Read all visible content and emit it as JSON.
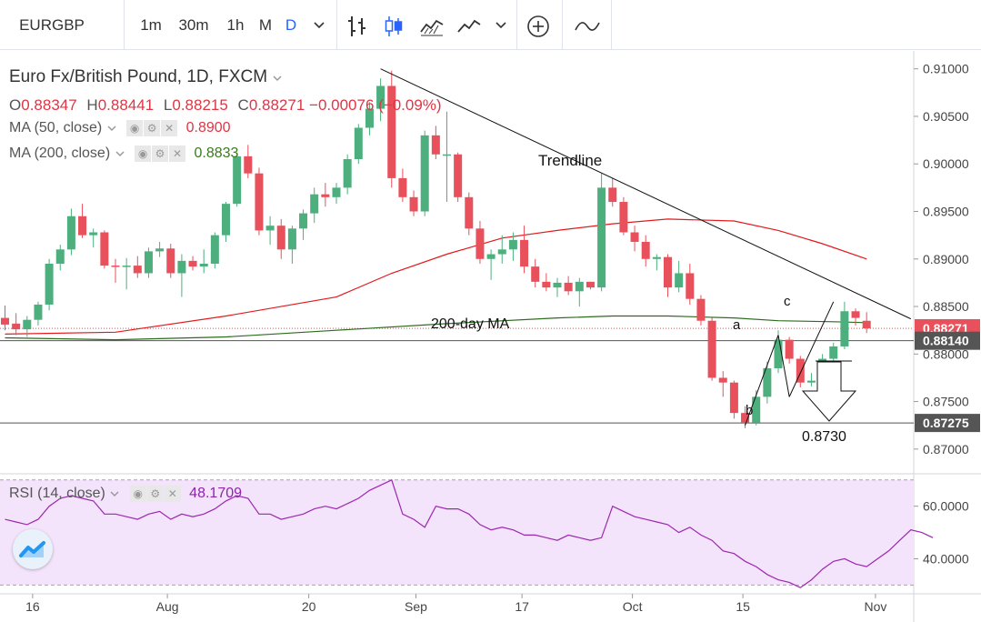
{
  "toolbar": {
    "symbol": "EURGBP",
    "intervals": [
      "1m",
      "30m",
      "1h",
      "M",
      "D"
    ],
    "active_interval": "D"
  },
  "legend": {
    "title": "Euro Fx/British Pound, 1D, FXCM",
    "ohlc": {
      "o_label": "O",
      "o": "0.88347",
      "h_label": "H",
      "h": "0.88441",
      "l_label": "L",
      "l": "0.88215",
      "c_label": "C",
      "c": "0.88271",
      "change": "−0.00076 (−0.09%)"
    },
    "ma50": {
      "label": "MA (50, close)",
      "value": "0.8900"
    },
    "ma200": {
      "label": "MA (200, close)",
      "value": "0.8833"
    },
    "rsi": {
      "label": "RSI (14, close)",
      "value": "48.1709"
    }
  },
  "annotations": {
    "trendline": "Trendline",
    "ma200": "200-day MA",
    "a": "a",
    "b": "b",
    "c": "c",
    "target": "0.8730"
  },
  "colors": {
    "up": "#4caf7d",
    "down": "#e8505b",
    "ma50": "#e31a1c",
    "ma200": "#2e6b1e",
    "rsi": "#9c27b0",
    "rsi_band": "#f3e3fb"
  },
  "chart_data": [
    {
      "type": "candlestick",
      "title": "Euro Fx/British Pound, 1D, FXCM",
      "ylim": [
        0.8675,
        0.9115
      ],
      "price_ticks": [
        "0.91000",
        "0.90500",
        "0.90000",
        "0.89500",
        "0.89000",
        "0.88500",
        "0.88000",
        "0.87500",
        "0.87000"
      ],
      "price_labels": [
        {
          "value": "0.88271",
          "color": "#e8505b"
        },
        {
          "value": "0.88140",
          "color": "#555555"
        },
        {
          "value": "0.87275",
          "color": "#555555"
        }
      ],
      "horizontal_levels": [
        0.8814,
        0.87275
      ],
      "x_labels": [
        "16",
        "Aug",
        "20",
        "Sep",
        "17",
        "Oct",
        "15",
        "Nov"
      ],
      "candles": [
        {
          "o": 0.8838,
          "h": 0.8851,
          "l": 0.8825,
          "c": 0.8831
        },
        {
          "o": 0.8832,
          "h": 0.8843,
          "l": 0.882,
          "c": 0.8826
        },
        {
          "o": 0.8826,
          "h": 0.884,
          "l": 0.8818,
          "c": 0.8836
        },
        {
          "o": 0.8836,
          "h": 0.8855,
          "l": 0.883,
          "c": 0.8852
        },
        {
          "o": 0.8852,
          "h": 0.89,
          "l": 0.8846,
          "c": 0.8895
        },
        {
          "o": 0.8895,
          "h": 0.8915,
          "l": 0.8888,
          "c": 0.891
        },
        {
          "o": 0.891,
          "h": 0.8953,
          "l": 0.8904,
          "c": 0.8945
        },
        {
          "o": 0.8945,
          "h": 0.8958,
          "l": 0.8922,
          "c": 0.8925
        },
        {
          "o": 0.8925,
          "h": 0.8932,
          "l": 0.8912,
          "c": 0.8928
        },
        {
          "o": 0.8928,
          "h": 0.893,
          "l": 0.889,
          "c": 0.8893
        },
        {
          "o": 0.8893,
          "h": 0.89,
          "l": 0.8875,
          "c": 0.8892
        },
        {
          "o": 0.8892,
          "h": 0.8901,
          "l": 0.8868,
          "c": 0.8893
        },
        {
          "o": 0.8893,
          "h": 0.8903,
          "l": 0.888,
          "c": 0.8885
        },
        {
          "o": 0.8885,
          "h": 0.8912,
          "l": 0.888,
          "c": 0.8908
        },
        {
          "o": 0.8908,
          "h": 0.8918,
          "l": 0.8902,
          "c": 0.8911
        },
        {
          "o": 0.8911,
          "h": 0.8916,
          "l": 0.888,
          "c": 0.8885
        },
        {
          "o": 0.8885,
          "h": 0.8905,
          "l": 0.886,
          "c": 0.8898
        },
        {
          "o": 0.8898,
          "h": 0.8903,
          "l": 0.8888,
          "c": 0.8892
        },
        {
          "o": 0.8892,
          "h": 0.891,
          "l": 0.8885,
          "c": 0.8895
        },
        {
          "o": 0.8895,
          "h": 0.8928,
          "l": 0.889,
          "c": 0.8925
        },
        {
          "o": 0.8925,
          "h": 0.896,
          "l": 0.8918,
          "c": 0.8958
        },
        {
          "o": 0.8958,
          "h": 0.9012,
          "l": 0.8955,
          "c": 0.9008
        },
        {
          "o": 0.9008,
          "h": 0.902,
          "l": 0.8985,
          "c": 0.899
        },
        {
          "o": 0.899,
          "h": 0.8996,
          "l": 0.8925,
          "c": 0.893
        },
        {
          "o": 0.893,
          "h": 0.8945,
          "l": 0.8915,
          "c": 0.8935
        },
        {
          "o": 0.8935,
          "h": 0.8942,
          "l": 0.89,
          "c": 0.891
        },
        {
          "o": 0.891,
          "h": 0.8935,
          "l": 0.8895,
          "c": 0.8932
        },
        {
          "o": 0.8932,
          "h": 0.8952,
          "l": 0.892,
          "c": 0.8948
        },
        {
          "o": 0.8948,
          "h": 0.8975,
          "l": 0.8938,
          "c": 0.8968
        },
        {
          "o": 0.8968,
          "h": 0.898,
          "l": 0.8955,
          "c": 0.8965
        },
        {
          "o": 0.8965,
          "h": 0.898,
          "l": 0.8958,
          "c": 0.8975
        },
        {
          "o": 0.8975,
          "h": 0.901,
          "l": 0.8968,
          "c": 0.9005
        },
        {
          "o": 0.9005,
          "h": 0.9042,
          "l": 0.9,
          "c": 0.9038
        },
        {
          "o": 0.9038,
          "h": 0.9065,
          "l": 0.903,
          "c": 0.9058
        },
        {
          "o": 0.9058,
          "h": 0.909,
          "l": 0.9045,
          "c": 0.9082
        },
        {
          "o": 0.9082,
          "h": 0.9098,
          "l": 0.8975,
          "c": 0.8985
        },
        {
          "o": 0.8985,
          "h": 0.8995,
          "l": 0.896,
          "c": 0.8965
        },
        {
          "o": 0.8965,
          "h": 0.8972,
          "l": 0.8945,
          "c": 0.895
        },
        {
          "o": 0.895,
          "h": 0.9035,
          "l": 0.8945,
          "c": 0.903
        },
        {
          "o": 0.903,
          "h": 0.904,
          "l": 0.9005,
          "c": 0.901
        },
        {
          "o": 0.901,
          "h": 0.9055,
          "l": 0.896,
          "c": 0.901
        },
        {
          "o": 0.901,
          "h": 0.9012,
          "l": 0.896,
          "c": 0.8965
        },
        {
          "o": 0.8965,
          "h": 0.897,
          "l": 0.8925,
          "c": 0.8932
        },
        {
          "o": 0.8932,
          "h": 0.894,
          "l": 0.8895,
          "c": 0.89
        },
        {
          "o": 0.89,
          "h": 0.891,
          "l": 0.8878,
          "c": 0.8905
        },
        {
          "o": 0.8905,
          "h": 0.8925,
          "l": 0.8895,
          "c": 0.891
        },
        {
          "o": 0.891,
          "h": 0.8928,
          "l": 0.8898,
          "c": 0.892
        },
        {
          "o": 0.892,
          "h": 0.8935,
          "l": 0.8885,
          "c": 0.8892
        },
        {
          "o": 0.8892,
          "h": 0.89,
          "l": 0.887,
          "c": 0.8876
        },
        {
          "o": 0.8876,
          "h": 0.8885,
          "l": 0.8866,
          "c": 0.887
        },
        {
          "o": 0.887,
          "h": 0.888,
          "l": 0.886,
          "c": 0.8875
        },
        {
          "o": 0.8875,
          "h": 0.8882,
          "l": 0.8862,
          "c": 0.8866
        },
        {
          "o": 0.8866,
          "h": 0.888,
          "l": 0.885,
          "c": 0.8876
        },
        {
          "o": 0.8876,
          "h": 0.8876,
          "l": 0.8868,
          "c": 0.887
        },
        {
          "o": 0.887,
          "h": 0.899,
          "l": 0.8866,
          "c": 0.8975
        },
        {
          "o": 0.8975,
          "h": 0.8985,
          "l": 0.8955,
          "c": 0.896
        },
        {
          "o": 0.896,
          "h": 0.8965,
          "l": 0.8925,
          "c": 0.8928
        },
        {
          "o": 0.8928,
          "h": 0.8935,
          "l": 0.8908,
          "c": 0.8918
        },
        {
          "o": 0.8918,
          "h": 0.8925,
          "l": 0.8892,
          "c": 0.89
        },
        {
          "o": 0.89,
          "h": 0.8905,
          "l": 0.8888,
          "c": 0.8902
        },
        {
          "o": 0.8902,
          "h": 0.8905,
          "l": 0.886,
          "c": 0.887
        },
        {
          "o": 0.887,
          "h": 0.8898,
          "l": 0.8865,
          "c": 0.8885
        },
        {
          "o": 0.8885,
          "h": 0.8895,
          "l": 0.8852,
          "c": 0.8858
        },
        {
          "o": 0.8858,
          "h": 0.8862,
          "l": 0.883,
          "c": 0.8835
        },
        {
          "o": 0.8835,
          "h": 0.8838,
          "l": 0.8772,
          "c": 0.8775
        },
        {
          "o": 0.8775,
          "h": 0.8782,
          "l": 0.8755,
          "c": 0.877
        },
        {
          "o": 0.877,
          "h": 0.8772,
          "l": 0.8732,
          "c": 0.8738
        },
        {
          "o": 0.8738,
          "h": 0.8745,
          "l": 0.8722,
          "c": 0.8728
        },
        {
          "o": 0.8728,
          "h": 0.8762,
          "l": 0.8725,
          "c": 0.8755
        },
        {
          "o": 0.8755,
          "h": 0.8792,
          "l": 0.8748,
          "c": 0.8785
        },
        {
          "o": 0.8785,
          "h": 0.8825,
          "l": 0.878,
          "c": 0.8815
        },
        {
          "o": 0.8815,
          "h": 0.8818,
          "l": 0.879,
          "c": 0.8795
        },
        {
          "o": 0.8795,
          "h": 0.8798,
          "l": 0.8765,
          "c": 0.877
        },
        {
          "o": 0.877,
          "h": 0.878,
          "l": 0.8766,
          "c": 0.8772
        },
        {
          "o": 0.8772,
          "h": 0.88,
          "l": 0.8768,
          "c": 0.8795
        },
        {
          "o": 0.8795,
          "h": 0.8812,
          "l": 0.879,
          "c": 0.8808
        },
        {
          "o": 0.8808,
          "h": 0.8855,
          "l": 0.8805,
          "c": 0.8845
        },
        {
          "o": 0.8845,
          "h": 0.8848,
          "l": 0.883,
          "c": 0.8838
        },
        {
          "o": 0.8835,
          "h": 0.8844,
          "l": 0.8822,
          "c": 0.8827
        }
      ],
      "ma50": [
        [
          0,
          0.8821
        ],
        [
          10,
          0.8823
        ],
        [
          20,
          0.884
        ],
        [
          30,
          0.886
        ],
        [
          35,
          0.8885
        ],
        [
          40,
          0.8905
        ],
        [
          45,
          0.8922
        ],
        [
          50,
          0.893
        ],
        [
          55,
          0.8937
        ],
        [
          60,
          0.8942
        ],
        [
          66,
          0.894
        ],
        [
          70,
          0.893
        ],
        [
          74,
          0.8916
        ],
        [
          78,
          0.89
        ]
      ],
      "ma200": [
        [
          0,
          0.8817
        ],
        [
          10,
          0.8815
        ],
        [
          20,
          0.8818
        ],
        [
          30,
          0.8825
        ],
        [
          40,
          0.8832
        ],
        [
          50,
          0.8838
        ],
        [
          55,
          0.884
        ],
        [
          60,
          0.884
        ],
        [
          66,
          0.8838
        ],
        [
          70,
          0.8835
        ],
        [
          75,
          0.8834
        ],
        [
          78,
          0.8833
        ]
      ],
      "trendline": [
        [
          34,
          0.91
        ],
        [
          82,
          0.8837
        ]
      ],
      "abc_lines": [
        [
          [
            67,
            0.8725
          ],
          [
            70,
            0.882
          ]
        ],
        [
          [
            70,
            0.882
          ],
          [
            71,
            0.8755
          ]
        ],
        [
          [
            71,
            0.8755
          ],
          [
            75,
            0.8855
          ]
        ]
      ]
    },
    {
      "type": "line",
      "title": "RSI (14, close)",
      "ylim": [
        27,
        72
      ],
      "y_ticks": [
        "60.0000",
        "40.0000"
      ],
      "band": [
        30,
        70
      ],
      "values": [
        55,
        54,
        53,
        55,
        60,
        63,
        64,
        63,
        62,
        57,
        57,
        56,
        55,
        57,
        58,
        55,
        57,
        56,
        57,
        59,
        62,
        64,
        63,
        57,
        57,
        55,
        56,
        57,
        59,
        60,
        59,
        61,
        63,
        66,
        68,
        70,
        57,
        55,
        52,
        60,
        59,
        59,
        57,
        53,
        51,
        52,
        51,
        49,
        49,
        48,
        47,
        49,
        48,
        47,
        48,
        60,
        58,
        56,
        55,
        54,
        53,
        50,
        52,
        49,
        47,
        43,
        42,
        39,
        37,
        34,
        32,
        31,
        29,
        32,
        36,
        39,
        40,
        38,
        37,
        40,
        43,
        47,
        51,
        50,
        48
      ]
    }
  ]
}
